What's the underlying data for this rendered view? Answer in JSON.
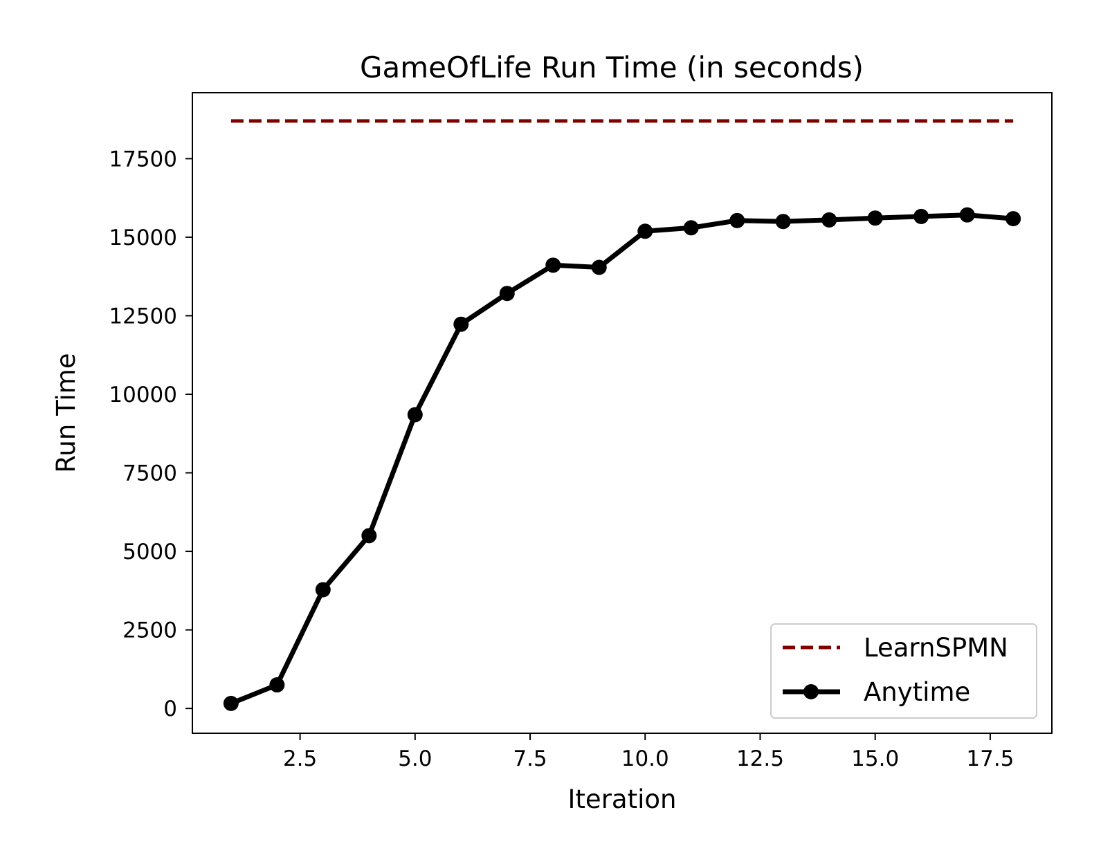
{
  "chart_data": {
    "type": "line",
    "title": "GameOfLife Run Time (in seconds)",
    "xlabel": "Iteration",
    "ylabel": "Run Time",
    "xlim": [
      0.16,
      18.84
    ],
    "ylim": [
      -790,
      19600
    ],
    "xticks": [
      2.5,
      5.0,
      7.5,
      10.0,
      12.5,
      15.0,
      17.5
    ],
    "xtick_labels": [
      "2.5",
      "5.0",
      "7.5",
      "10.0",
      "12.5",
      "15.0",
      "17.5"
    ],
    "yticks": [
      0,
      2500,
      5000,
      7500,
      10000,
      12500,
      15000,
      17500
    ],
    "ytick_labels": [
      "0",
      "2500",
      "5000",
      "7500",
      "10000",
      "12500",
      "15000",
      "17500"
    ],
    "grid": false,
    "legend_position": "lower-right",
    "series": [
      {
        "name": "LearnSPMN",
        "style": "dashed",
        "color": "#800000",
        "x": [
          1,
          18
        ],
        "y": [
          18700,
          18700
        ]
      },
      {
        "name": "Anytime",
        "style": "solid-markers",
        "color": "#000000",
        "x": [
          1,
          2,
          3,
          4,
          5,
          6,
          7,
          8,
          9,
          10,
          11,
          12,
          13,
          14,
          15,
          16,
          17,
          18
        ],
        "y": [
          160,
          750,
          3780,
          5500,
          9350,
          12230,
          13210,
          14110,
          14040,
          15190,
          15300,
          15530,
          15500,
          15550,
          15610,
          15660,
          15710,
          15590
        ]
      }
    ]
  }
}
